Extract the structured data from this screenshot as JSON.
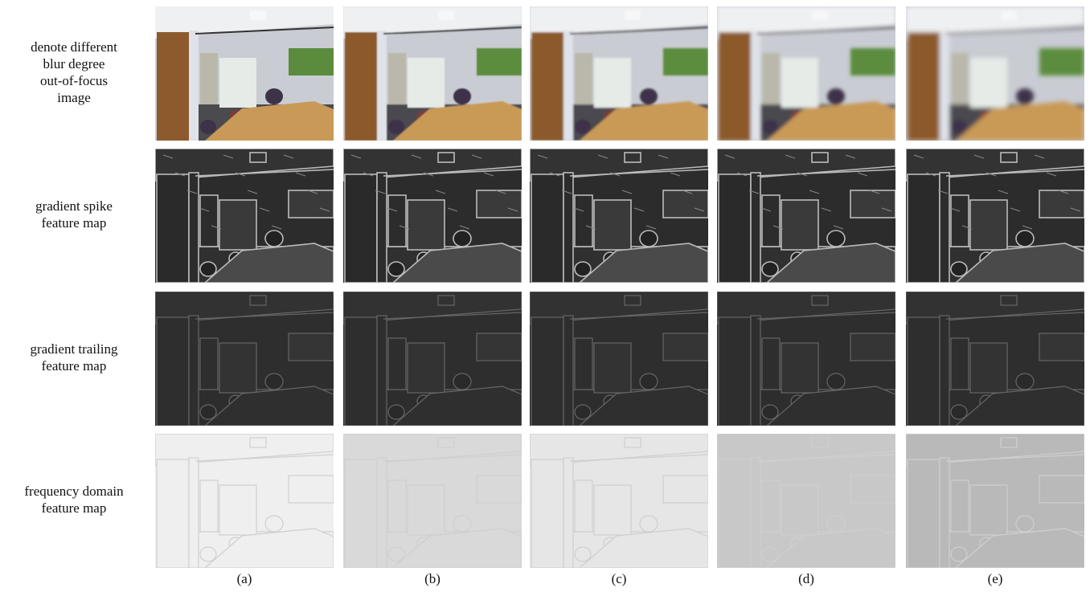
{
  "rows": [
    {
      "label_lines": [
        "denote different",
        "blur degree",
        "out-of-focus",
        "image"
      ]
    },
    {
      "label_lines": [
        "gradient spike",
        "feature map"
      ]
    },
    {
      "label_lines": [
        "gradient trailing",
        "feature map"
      ]
    },
    {
      "label_lines": [
        "frequency domain",
        "feature map"
      ]
    }
  ],
  "columns": [
    "(a)",
    "(b)",
    "(c)",
    "(d)",
    "(e)"
  ]
}
